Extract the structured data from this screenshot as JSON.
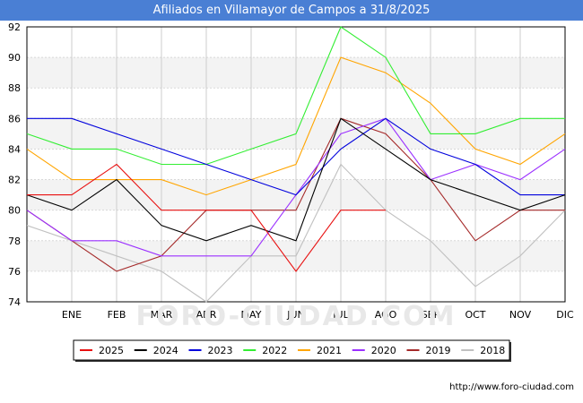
{
  "chart_data": {
    "type": "line",
    "title": "Afiliados en Villamayor de Campos a 31/8/2025",
    "categories": [
      "",
      "ENE",
      "FEB",
      "MAR",
      "ABR",
      "MAY",
      "JUN",
      "JUL",
      "AGO",
      "SEP",
      "OCT",
      "NOV",
      "DIC"
    ],
    "ylim": [
      74,
      92
    ],
    "yticks": [
      "74",
      "76",
      "78",
      "80",
      "82",
      "84",
      "86",
      "88",
      "90",
      "92"
    ],
    "xlabel": "",
    "ylabel": "",
    "watermark": "FORO-CIUDAD.COM",
    "series": [
      {
        "name": "2018",
        "color": "#c0c0c0",
        "values": [
          79,
          78,
          77,
          76,
          74,
          77,
          77,
          83,
          80,
          78,
          75,
          77,
          80
        ]
      },
      {
        "name": "2019",
        "color": "#a52a2a",
        "values": [
          80,
          78,
          76,
          77,
          80,
          80,
          80,
          86,
          85,
          82,
          78,
          80,
          80
        ]
      },
      {
        "name": "2020",
        "color": "#9b30ff",
        "values": [
          80,
          78,
          78,
          77,
          77,
          77,
          81,
          85,
          86,
          82,
          83,
          82,
          84
        ]
      },
      {
        "name": "2021",
        "color": "#ffa500",
        "values": [
          84,
          82,
          82,
          82,
          81,
          82,
          83,
          90,
          89,
          87,
          84,
          83,
          85
        ]
      },
      {
        "name": "2022",
        "color": "#33ee33",
        "values": [
          85,
          84,
          84,
          83,
          83,
          84,
          85,
          92,
          90,
          85,
          85,
          86,
          86
        ]
      },
      {
        "name": "2023",
        "color": "#0000dd",
        "values": [
          86,
          86,
          85,
          84,
          83,
          82,
          81,
          84,
          86,
          84,
          83,
          81,
          81
        ]
      },
      {
        "name": "2024",
        "color": "#000000",
        "values": [
          81,
          80,
          82,
          79,
          78,
          79,
          78,
          86,
          84,
          82,
          81,
          80,
          81
        ]
      },
      {
        "name": "2025",
        "color": "#e81010",
        "values": [
          81,
          81,
          83,
          80,
          80,
          80,
          76,
          80,
          80,
          null,
          null,
          null,
          null
        ]
      }
    ],
    "legend_order": [
      "2025",
      "2024",
      "2023",
      "2022",
      "2021",
      "2020",
      "2019",
      "2018"
    ],
    "legend_position": "bottom"
  },
  "footer": {
    "url": "http://www.foro-ciudad.com"
  }
}
